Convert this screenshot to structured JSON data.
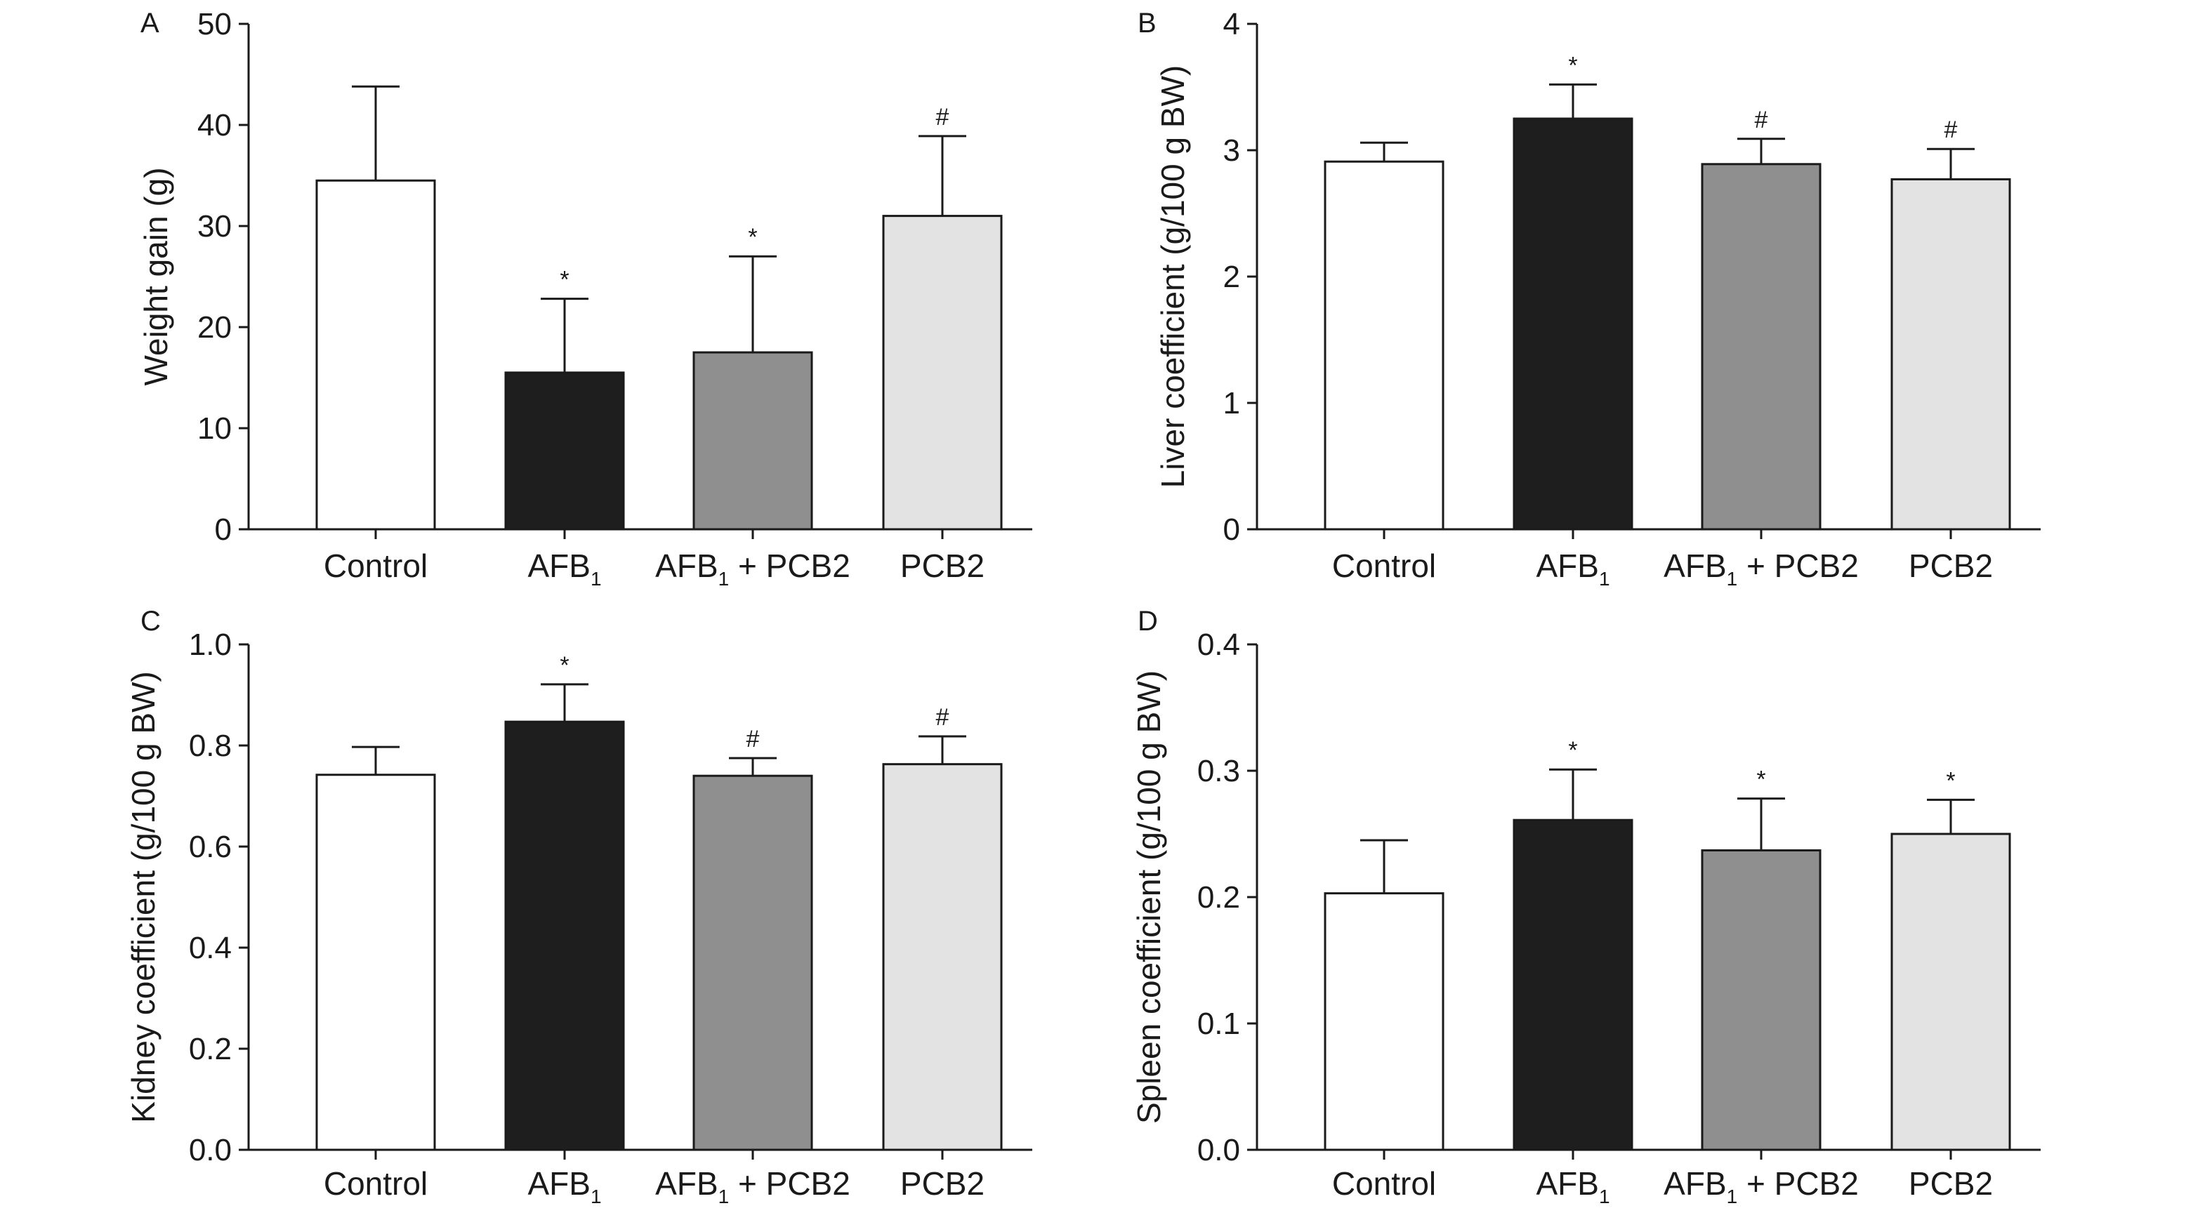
{
  "figure": {
    "background": "#ffffff",
    "axis_color": "#1a1a1a"
  },
  "chart_data": [
    {
      "type": "bar",
      "panel": "A",
      "ylabel": "Weight gain (g)",
      "ylim": [
        0,
        50
      ],
      "yticks": [
        "0",
        "10",
        "20",
        "30",
        "40",
        "50"
      ],
      "categories": [
        {
          "main": "Control",
          "sub": ""
        },
        {
          "main": "AFB",
          "sub": "1"
        },
        {
          "main": "AFB",
          "sub": "1",
          "suffix": " + PCB2"
        },
        {
          "main": "PCB2",
          "sub": ""
        }
      ],
      "values": [
        34.5,
        15.5,
        17.5,
        31.0
      ],
      "errors": [
        9.3,
        7.3,
        9.5,
        7.9
      ],
      "markers": [
        "",
        "*",
        "*",
        "#"
      ],
      "colors": [
        "#ffffff",
        "#1e1e1e",
        "#8f8f8f",
        "#e3e3e3"
      ]
    },
    {
      "type": "bar",
      "panel": "B",
      "ylabel": "Liver coefficient (g/100 g BW)",
      "ylim": [
        0,
        4
      ],
      "yticks": [
        "0",
        "1",
        "2",
        "3",
        "4"
      ],
      "categories": [
        {
          "main": "Control",
          "sub": ""
        },
        {
          "main": "AFB",
          "sub": "1"
        },
        {
          "main": "AFB",
          "sub": "1",
          "suffix": " + PCB2"
        },
        {
          "main": "PCB2",
          "sub": ""
        }
      ],
      "values": [
        2.91,
        3.25,
        2.89,
        2.77
      ],
      "errors": [
        0.15,
        0.27,
        0.2,
        0.24
      ],
      "markers": [
        "",
        "*",
        "#",
        "#"
      ],
      "colors": [
        "#ffffff",
        "#1e1e1e",
        "#8f8f8f",
        "#e3e3e3"
      ]
    },
    {
      "type": "bar",
      "panel": "C",
      "ylabel": "Kidney coefficient (g/100 g BW)",
      "ylim": [
        0,
        1.0
      ],
      "yticks": [
        "0.0",
        "0.2",
        "0.4",
        "0.6",
        "0.8",
        "1.0"
      ],
      "categories": [
        {
          "main": "Control",
          "sub": ""
        },
        {
          "main": "AFB",
          "sub": "1"
        },
        {
          "main": "AFB",
          "sub": "1",
          "suffix": " + PCB2"
        },
        {
          "main": "PCB2",
          "sub": ""
        }
      ],
      "values": [
        0.742,
        0.847,
        0.74,
        0.763
      ],
      "errors": [
        0.055,
        0.074,
        0.035,
        0.055
      ],
      "markers": [
        "",
        "*",
        "#",
        "#"
      ],
      "colors": [
        "#ffffff",
        "#1e1e1e",
        "#8f8f8f",
        "#e3e3e3"
      ]
    },
    {
      "type": "bar",
      "panel": "D",
      "ylabel": "Spleen coefficient (g/100 g BW)",
      "ylim": [
        0,
        0.4
      ],
      "yticks": [
        "0.0",
        "0.1",
        "0.2",
        "0.3",
        "0.4"
      ],
      "categories": [
        {
          "main": "Control",
          "sub": ""
        },
        {
          "main": "AFB",
          "sub": "1"
        },
        {
          "main": "AFB",
          "sub": "1",
          "suffix": " + PCB2"
        },
        {
          "main": "PCB2",
          "sub": ""
        }
      ],
      "values": [
        0.203,
        0.261,
        0.237,
        0.25
      ],
      "errors": [
        0.042,
        0.04,
        0.041,
        0.027
      ],
      "markers": [
        "",
        "*",
        "*",
        "*"
      ],
      "colors": [
        "#ffffff",
        "#1e1e1e",
        "#8f8f8f",
        "#e3e3e3"
      ]
    }
  ]
}
